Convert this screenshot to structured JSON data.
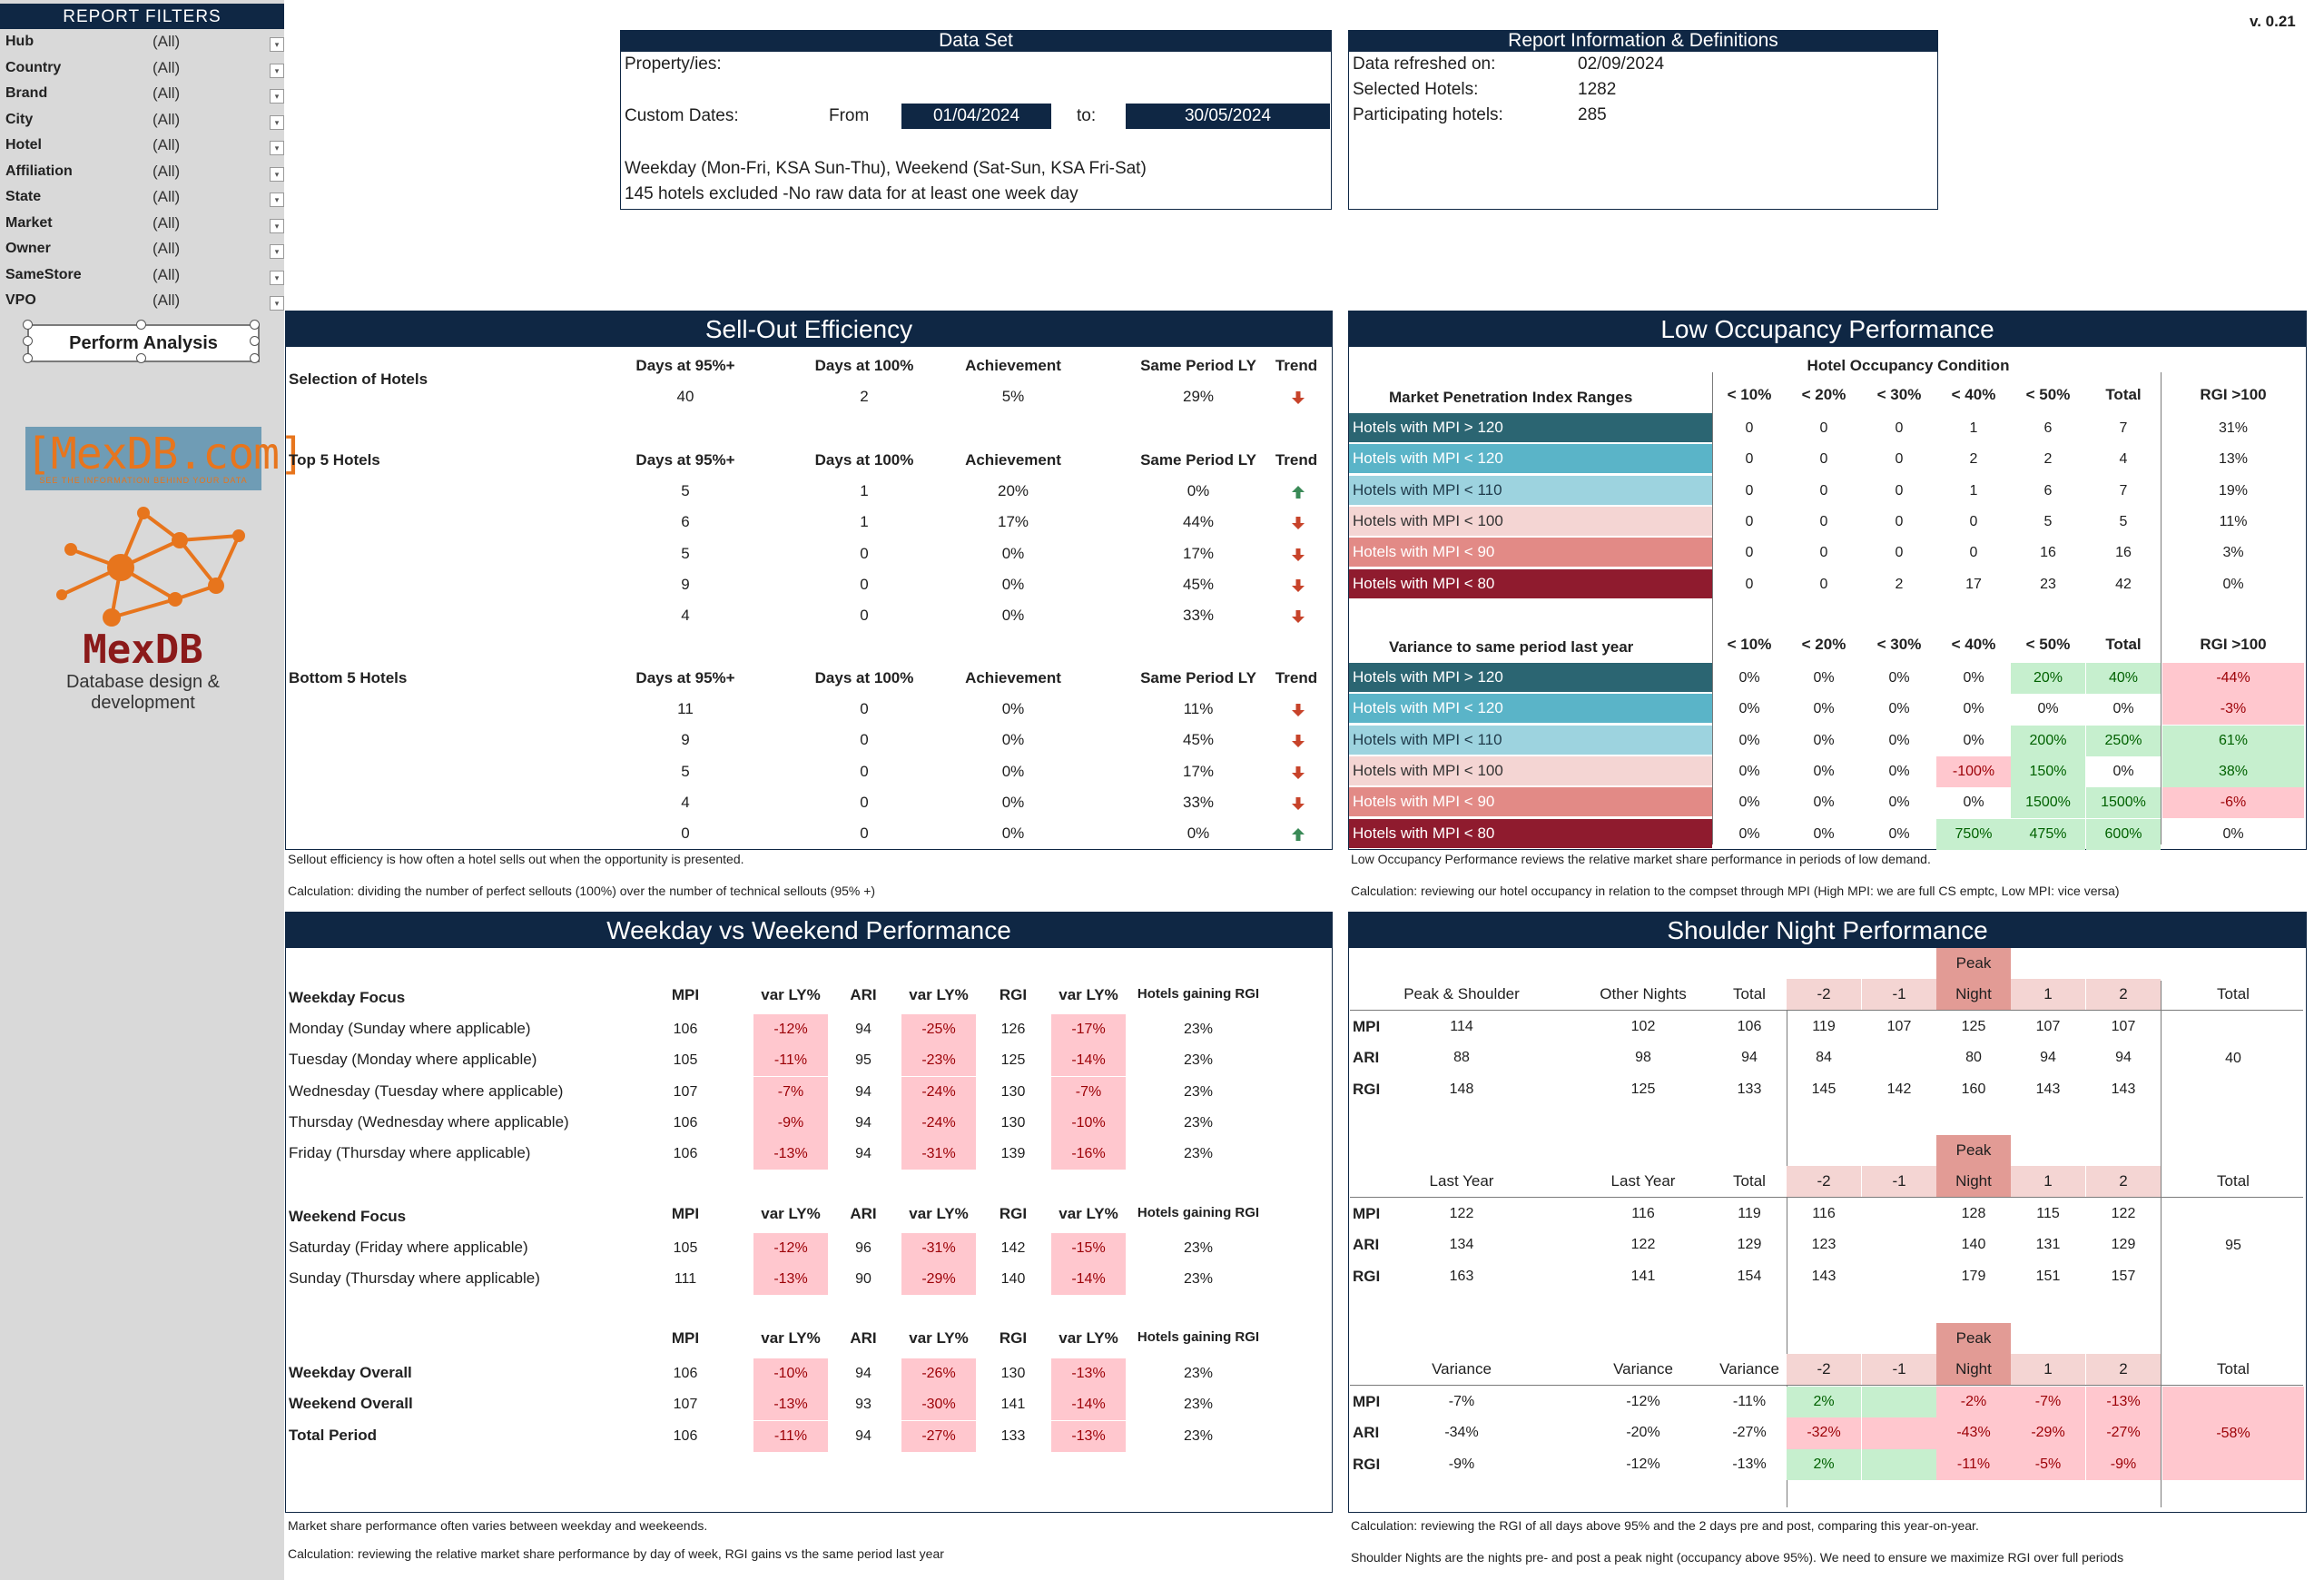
{
  "version": "v. 0.21",
  "filters": {
    "title": "REPORT FILTERS",
    "items": [
      {
        "label": "Hub",
        "value": "(All)"
      },
      {
        "label": "Country",
        "value": "(All)"
      },
      {
        "label": "Brand",
        "value": "(All)"
      },
      {
        "label": "City",
        "value": "(All)"
      },
      {
        "label": "Hotel",
        "value": "(All)"
      },
      {
        "label": "Affiliation",
        "value": "(All)"
      },
      {
        "label": "State",
        "value": "(All)"
      },
      {
        "label": "Market",
        "value": "(All)"
      },
      {
        "label": "Owner",
        "value": "(All)"
      },
      {
        "label": "SameStore",
        "value": "(All)"
      },
      {
        "label": "VPO",
        "value": "(All)"
      }
    ],
    "perform_button": "Perform Analysis"
  },
  "logos": {
    "mexdb_com": "[MexDB.com]",
    "mexdb_tagline": "SEE THE INFORMATION BEHIND YOUR DATA",
    "mexdb": "MexDB",
    "mexdb_sub": "Database design & development"
  },
  "dataset": {
    "title": "Data Set",
    "properties_label": "Property/ies:",
    "custom_dates_label": "Custom Dates:",
    "from_label": "From",
    "from_value": "01/04/2024",
    "to_label": "to:",
    "to_value": "30/05/2024",
    "note1": "Weekday (Mon-Fri, KSA Sun-Thu), Weekend (Sat-Sun, KSA Fri-Sat)",
    "note2": "145 hotels excluded -No raw data for at least one week day"
  },
  "report_info": {
    "title": "Report Information & Definitions",
    "refreshed_label": "Data refreshed on:",
    "refreshed_value": "02/09/2024",
    "selected_label": "Selected Hotels:",
    "selected_value": "1282",
    "participating_label": "Participating hotels:",
    "participating_value": "285"
  },
  "sellout": {
    "title": "Sell-Out Efficiency",
    "headers": [
      "Days at 95%+",
      "Days at 100%",
      "Achievement",
      "Same Period LY",
      "Trend"
    ],
    "selection_label": "Selection of Hotels",
    "selection_row": [
      "40",
      "2",
      "5%",
      "29%"
    ],
    "selection_trend": "down",
    "top_label": "Top 5 Hotels",
    "top_rows": [
      {
        "v": [
          "5",
          "1",
          "20%",
          "0%"
        ],
        "trend": "up"
      },
      {
        "v": [
          "6",
          "1",
          "17%",
          "44%"
        ],
        "trend": "down"
      },
      {
        "v": [
          "5",
          "0",
          "0%",
          "17%"
        ],
        "trend": "down"
      },
      {
        "v": [
          "9",
          "0",
          "0%",
          "45%"
        ],
        "trend": "down"
      },
      {
        "v": [
          "4",
          "0",
          "0%",
          "33%"
        ],
        "trend": "down"
      }
    ],
    "bottom_label": "Bottom 5 Hotels",
    "bottom_rows": [
      {
        "v": [
          "11",
          "0",
          "0%",
          "11%"
        ],
        "trend": "down"
      },
      {
        "v": [
          "9",
          "0",
          "0%",
          "45%"
        ],
        "trend": "down"
      },
      {
        "v": [
          "5",
          "0",
          "0%",
          "17%"
        ],
        "trend": "down"
      },
      {
        "v": [
          "4",
          "0",
          "0%",
          "33%"
        ],
        "trend": "down"
      },
      {
        "v": [
          "0",
          "0",
          "0%",
          "0%"
        ],
        "trend": "up"
      }
    ],
    "note1": "Sellout efficiency is how often a hotel sells out when the opportunity is presented.",
    "note2": "Calculation: dividing the number of perfect sellouts (100%) over the number of technical sellouts (95% +)"
  },
  "lowocc": {
    "title": "Low Occupancy Performance",
    "condition_label": "Hotel Occupancy Condition",
    "mpi_ranges_label": "Market Penetration Index Ranges",
    "variance_label": "Variance to same period last year",
    "col_headers": [
      "< 10%",
      "< 20%",
      "< 30%",
      "< 40%",
      "< 50%",
      "Total"
    ],
    "rgi_header": "RGI >100",
    "rows": [
      "Hotels with MPI > 120",
      "Hotels with MPI < 120",
      "Hotels with MPI < 110",
      "Hotels with MPI < 100",
      "Hotels with MPI < 90",
      "Hotels with MPI < 80"
    ],
    "counts": [
      [
        "0",
        "0",
        "0",
        "1",
        "6",
        "7"
      ],
      [
        "0",
        "0",
        "0",
        "2",
        "2",
        "4"
      ],
      [
        "0",
        "0",
        "0",
        "1",
        "6",
        "7"
      ],
      [
        "0",
        "0",
        "0",
        "0",
        "5",
        "5"
      ],
      [
        "0",
        "0",
        "0",
        "0",
        "16",
        "16"
      ],
      [
        "0",
        "0",
        "2",
        "17",
        "23",
        "42"
      ]
    ],
    "count_rgi": [
      "31%",
      "13%",
      "19%",
      "11%",
      "3%",
      "0%"
    ],
    "variance": [
      [
        "0%",
        "0%",
        "0%",
        "0%",
        "20%",
        "40%"
      ],
      [
        "0%",
        "0%",
        "0%",
        "0%",
        "0%",
        "0%"
      ],
      [
        "0%",
        "0%",
        "0%",
        "0%",
        "200%",
        "250%"
      ],
      [
        "0%",
        "0%",
        "0%",
        "-100%",
        "150%",
        "0%"
      ],
      [
        "0%",
        "0%",
        "0%",
        "0%",
        "1500%",
        "1500%"
      ],
      [
        "0%",
        "0%",
        "0%",
        "750%",
        "475%",
        "600%"
      ]
    ],
    "variance_rgi": [
      "-44%",
      "-3%",
      "61%",
      "38%",
      "-6%",
      "0%"
    ],
    "note1": "Low Occupancy Performance reviews the relative market share performance in periods of low demand.",
    "note2": "Calculation: reviewing our hotel occupancy in relation to the compset through MPI (High MPI: we are full CS emptc, Low MPI: vice versa)"
  },
  "weekday": {
    "title": "Weekday vs Weekend Performance",
    "headers": [
      "MPI",
      "var LY%",
      "ARI",
      "var LY%",
      "RGI",
      "var LY%",
      "Hotels gaining RGI"
    ],
    "weekday_label": "Weekday Focus",
    "weekday_rows": [
      {
        "label": "Monday (Sunday where applicable)",
        "v": [
          "106",
          "-12%",
          "94",
          "-25%",
          "126",
          "-17%",
          "23%"
        ]
      },
      {
        "label": "Tuesday (Monday where applicable)",
        "v": [
          "105",
          "-11%",
          "95",
          "-23%",
          "125",
          "-14%",
          "23%"
        ]
      },
      {
        "label": "Wednesday (Tuesday where applicable)",
        "v": [
          "107",
          "-7%",
          "94",
          "-24%",
          "130",
          "-7%",
          "23%"
        ]
      },
      {
        "label": "Thursday (Wednesday where applicable)",
        "v": [
          "106",
          "-9%",
          "94",
          "-24%",
          "130",
          "-10%",
          "23%"
        ]
      },
      {
        "label": "Friday (Thursday where applicable)",
        "v": [
          "106",
          "-13%",
          "94",
          "-31%",
          "139",
          "-16%",
          "23%"
        ]
      }
    ],
    "weekend_label": "Weekend Focus",
    "weekend_rows": [
      {
        "label": "Saturday (Friday where applicable)",
        "v": [
          "105",
          "-12%",
          "96",
          "-31%",
          "142",
          "-15%",
          "23%"
        ]
      },
      {
        "label": "Sunday (Thursday where applicable)",
        "v": [
          "111",
          "-13%",
          "90",
          "-29%",
          "140",
          "-14%",
          "23%"
        ]
      }
    ],
    "overall_rows": [
      {
        "label": "Weekday Overall",
        "v": [
          "106",
          "-10%",
          "94",
          "-26%",
          "130",
          "-13%",
          "23%"
        ]
      },
      {
        "label": "Weekend Overall",
        "v": [
          "107",
          "-13%",
          "93",
          "-30%",
          "141",
          "-14%",
          "23%"
        ]
      },
      {
        "label": "Total Period",
        "v": [
          "106",
          "-11%",
          "94",
          "-27%",
          "133",
          "-13%",
          "23%"
        ]
      }
    ],
    "note1": "Market share performance often varies between weekday and weekeends.",
    "note2": "Calculation: reviewing the relative market share performance by day of week, RGI gains vs the same period last year"
  },
  "shoulder": {
    "title": "Shoulder Night Performance",
    "peak_label": "Peak",
    "night_label": "Night",
    "offsets": [
      "-2",
      "-1",
      "1",
      "2"
    ],
    "total_label": "Total",
    "metrics": [
      "MPI",
      "ARI",
      "RGI"
    ],
    "block1": {
      "headers": [
        "Peak & Shoulder",
        "Other Nights",
        "Total"
      ],
      "rows": [
        {
          "v": [
            "114",
            "102",
            "106"
          ],
          "o": [
            "119",
            "107",
            "125",
            "107",
            "107"
          ]
        },
        {
          "v": [
            "88",
            "98",
            "94"
          ],
          "o": [
            "84",
            "",
            "80",
            "94",
            "94"
          ]
        },
        {
          "v": [
            "148",
            "125",
            "133"
          ],
          "o": [
            "145",
            "142",
            "160",
            "143",
            "143"
          ]
        }
      ],
      "total": "40"
    },
    "block2": {
      "headers": [
        "Last Year",
        "Last Year",
        "Total"
      ],
      "rows": [
        {
          "v": [
            "122",
            "116",
            "119"
          ],
          "o": [
            "116",
            "",
            "128",
            "115",
            "122"
          ]
        },
        {
          "v": [
            "134",
            "122",
            "129"
          ],
          "o": [
            "123",
            "",
            "140",
            "131",
            "129"
          ]
        },
        {
          "v": [
            "163",
            "141",
            "154"
          ],
          "o": [
            "143",
            "",
            "179",
            "151",
            "157"
          ]
        }
      ],
      "total": "95"
    },
    "block3": {
      "headers": [
        "Variance",
        "Variance",
        "Variance"
      ],
      "rows": [
        {
          "v": [
            "-7%",
            "-12%",
            "-11%"
          ],
          "o": [
            "2%",
            "",
            "-2%",
            "-7%",
            "-13%"
          ]
        },
        {
          "v": [
            "-34%",
            "-20%",
            "-27%"
          ],
          "o": [
            "-32%",
            "",
            "-43%",
            "-29%",
            "-27%"
          ]
        },
        {
          "v": [
            "-9%",
            "-12%",
            "-13%"
          ],
          "o": [
            "2%",
            "",
            "-11%",
            "-5%",
            "-9%"
          ]
        }
      ],
      "total": "-58%"
    },
    "note1": "Calculation: reviewing the RGI of all days above 95% and the 2 days pre and post, comparing this year-on-year.",
    "note2": "Shoulder Nights are the nights pre- and post a peak night (occupancy above 95%). We need to ensure we maximize RGI over full periods"
  },
  "colors": {
    "navy": "#0f2744",
    "mpi120plus": "#2b6572",
    "mpi120": "#5ab4c8",
    "mpi110": "#9dd3df",
    "mpi100": "#f4d5d3",
    "mpi90": "#e28a86",
    "mpi80": "#8f1b2e",
    "peak": "#e29b95",
    "offset_bg": "#f4d5d3",
    "trend_down": "#c7432a",
    "trend_up": "#3a8a57"
  }
}
